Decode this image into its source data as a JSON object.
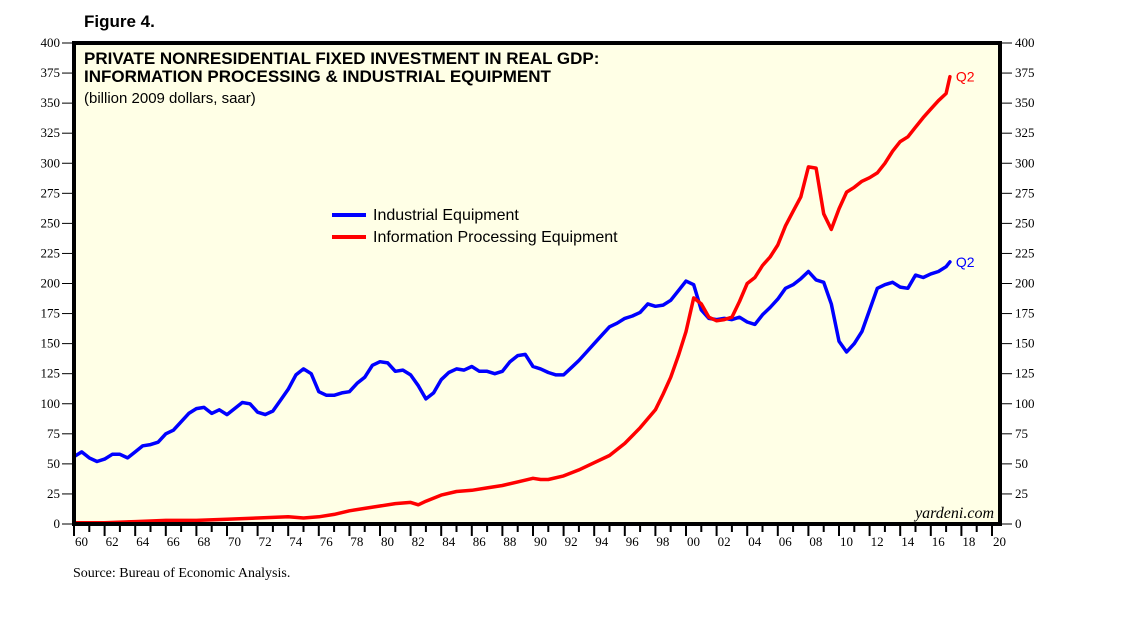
{
  "figure_label": "Figure 4.",
  "source": "Source: Bureau of Economic Analysis.",
  "chart_data": {
    "type": "line",
    "title": "PRIVATE NONRESIDENTIAL FIXED INVESTMENT IN REAL GDP:",
    "title_line2": "INFORMATION PROCESSING & INDUSTRIAL EQUIPMENT",
    "subtitle": "(billion 2009 dollars, saar)",
    "xlabel": "",
    "ylabel": "",
    "xlim": [
      1960,
      2020
    ],
    "ylim": [
      0,
      400
    ],
    "y_ticks": [
      0,
      25,
      50,
      75,
      100,
      125,
      150,
      175,
      200,
      225,
      250,
      275,
      300,
      325,
      350,
      375,
      400
    ],
    "x_tick_labels": [
      "60",
      "62",
      "64",
      "66",
      "68",
      "70",
      "72",
      "74",
      "76",
      "78",
      "80",
      "82",
      "84",
      "86",
      "88",
      "90",
      "92",
      "94",
      "96",
      "98",
      "00",
      "02",
      "04",
      "06",
      "08",
      "10",
      "12",
      "14",
      "16",
      "18",
      "20"
    ],
    "grid": false,
    "legend_position": "center",
    "background": "#ffffe6",
    "watermark": "yardeni.com",
    "series": [
      {
        "name": "Industrial Equipment",
        "color": "#0000ff",
        "end_label": "Q2",
        "x": [
          1960,
          1960.5,
          1961,
          1961.5,
          1962,
          1962.5,
          1963,
          1963.5,
          1964,
          1964.5,
          1965,
          1965.5,
          1966,
          1966.5,
          1967,
          1967.5,
          1968,
          1968.5,
          1969,
          1969.5,
          1970,
          1970.5,
          1971,
          1971.5,
          1972,
          1972.5,
          1973,
          1973.5,
          1974,
          1974.5,
          1975,
          1975.5,
          1976,
          1976.5,
          1977,
          1977.5,
          1978,
          1978.5,
          1979,
          1979.5,
          1980,
          1980.5,
          1981,
          1981.5,
          1982,
          1982.5,
          1983,
          1983.5,
          1984,
          1984.5,
          1985,
          1985.5,
          1986,
          1986.5,
          1987,
          1987.5,
          1988,
          1988.5,
          1989,
          1989.5,
          1990,
          1990.5,
          1991,
          1991.5,
          1992,
          1992.5,
          1993,
          1993.5,
          1994,
          1994.5,
          1995,
          1995.5,
          1996,
          1996.5,
          1997,
          1997.5,
          1998,
          1998.5,
          1999,
          1999.5,
          2000,
          2000.5,
          2001,
          2001.5,
          2002,
          2002.5,
          2003,
          2003.5,
          2004,
          2004.5,
          2005,
          2005.5,
          2006,
          2006.5,
          2007,
          2007.5,
          2008,
          2008.5,
          2009,
          2009.5,
          2010,
          2010.5,
          2011,
          2011.5,
          2012,
          2012.5,
          2013,
          2013.5,
          2014,
          2014.5,
          2015,
          2015.5,
          2016,
          2016.5,
          2017,
          2017.25
        ],
        "values": [
          56,
          60,
          55,
          52,
          54,
          58,
          58,
          55,
          60,
          65,
          66,
          68,
          75,
          78,
          85,
          92,
          96,
          97,
          92,
          95,
          91,
          96,
          101,
          100,
          93,
          91,
          94,
          103,
          112,
          124,
          129,
          125,
          110,
          107,
          107,
          109,
          110,
          117,
          122,
          132,
          135,
          134,
          127,
          128,
          124,
          115,
          104,
          109,
          120,
          126,
          129,
          128,
          131,
          127,
          127,
          125,
          127,
          135,
          140,
          141,
          131,
          129,
          126,
          124,
          124,
          130,
          136,
          143,
          150,
          157,
          164,
          167,
          171,
          173,
          176,
          183,
          181,
          182,
          186,
          194,
          202,
          199,
          178,
          171,
          170,
          171,
          170,
          172,
          168,
          166,
          174,
          180,
          187,
          196,
          199,
          204,
          210,
          203,
          201,
          183,
          152,
          143,
          150,
          160,
          178,
          196,
          199,
          201,
          197,
          196,
          207,
          205,
          208,
          210,
          214,
          218
        ]
      },
      {
        "name": "Information Processing Equipment",
        "color": "#ff0000",
        "end_label": "Q2",
        "x": [
          1960,
          1962,
          1964,
          1966,
          1968,
          1970,
          1972,
          1974,
          1975,
          1976,
          1977,
          1978,
          1979,
          1980,
          1981,
          1982,
          1982.5,
          1983,
          1984,
          1985,
          1986,
          1987,
          1988,
          1989,
          1990,
          1990.5,
          1991,
          1992,
          1993,
          1994,
          1995,
          1996,
          1997,
          1998,
          1998.5,
          1999,
          1999.5,
          2000,
          2000.5,
          2001,
          2001.5,
          2002,
          2002.5,
          2003,
          2003.5,
          2004,
          2004.5,
          2005,
          2005.5,
          2006,
          2006.5,
          2007,
          2007.5,
          2008,
          2008.5,
          2009,
          2009.5,
          2010,
          2010.5,
          2011,
          2011.5,
          2012,
          2012.5,
          2013,
          2013.5,
          2014,
          2014.5,
          2015,
          2015.5,
          2016,
          2016.5,
          2017,
          2017.25
        ],
        "values": [
          1,
          1,
          2,
          3,
          3,
          4,
          5,
          6,
          5,
          6,
          8,
          11,
          13,
          15,
          17,
          18,
          16,
          19,
          24,
          27,
          28,
          30,
          32,
          35,
          38,
          37,
          37,
          40,
          45,
          51,
          57,
          67,
          80,
          95,
          108,
          122,
          140,
          160,
          188,
          183,
          172,
          169,
          170,
          172,
          185,
          200,
          205,
          215,
          222,
          232,
          248,
          260,
          272,
          297,
          296,
          258,
          245,
          262,
          276,
          280,
          285,
          288,
          292,
          300,
          310,
          318,
          322,
          330,
          338,
          345,
          352,
          358,
          372
        ]
      }
    ]
  }
}
